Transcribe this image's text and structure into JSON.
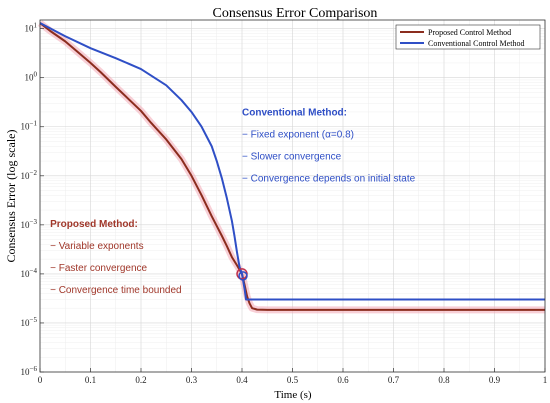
{
  "chart_data": {
    "type": "line",
    "title": "Consensus Error Comparison",
    "xlabel": "Time (s)",
    "ylabel": "Consensus Error (log scale)",
    "yscale": "log",
    "xlim": [
      0,
      1
    ],
    "ylim": [
      1e-06,
      15
    ],
    "grid": true,
    "legend_position": "top-right",
    "x_ticks": [
      {
        "value": 0,
        "label": "0"
      },
      {
        "value": 0.1,
        "label": "0.1"
      },
      {
        "value": 0.2,
        "label": "0.2"
      },
      {
        "value": 0.3,
        "label": "0.3"
      },
      {
        "value": 0.4,
        "label": "0.4"
      },
      {
        "value": 0.5,
        "label": "0.5"
      },
      {
        "value": 0.6,
        "label": "0.6"
      },
      {
        "value": 0.7,
        "label": "0.7"
      },
      {
        "value": 0.8,
        "label": "0.8"
      },
      {
        "value": 0.9,
        "label": "0.9"
      },
      {
        "value": 1,
        "label": "1"
      }
    ],
    "y_ticks": [
      {
        "value": 1e-06,
        "base": "10",
        "exp": "−6"
      },
      {
        "value": 1e-05,
        "base": "10",
        "exp": "−5"
      },
      {
        "value": 0.0001,
        "base": "10",
        "exp": "−4"
      },
      {
        "value": 0.001,
        "base": "10",
        "exp": "−3"
      },
      {
        "value": 0.01,
        "base": "10",
        "exp": "−2"
      },
      {
        "value": 0.1,
        "base": "10",
        "exp": "−1"
      },
      {
        "value": 1,
        "base": "10",
        "exp": "0"
      },
      {
        "value": 10,
        "base": "10",
        "exp": "1"
      }
    ],
    "series": [
      {
        "name": "Proposed Control Method",
        "color": "#8b2d1e",
        "x": [
          0,
          0.02,
          0.05,
          0.08,
          0.1,
          0.12,
          0.15,
          0.18,
          0.2,
          0.22,
          0.25,
          0.28,
          0.3,
          0.32,
          0.34,
          0.36,
          0.37,
          0.38,
          0.39,
          0.4,
          0.405,
          0.41,
          0.415,
          0.42,
          0.43,
          0.45,
          0.5,
          0.6,
          0.7,
          0.8,
          0.9,
          1.0
        ],
        "y": [
          13,
          9,
          5.5,
          3,
          2.0,
          1.3,
          0.65,
          0.33,
          0.21,
          0.12,
          0.055,
          0.022,
          0.01,
          0.004,
          0.0015,
          0.0006,
          0.00037,
          0.00022,
          0.00015,
          0.0001,
          6e-05,
          3.5e-05,
          2.5e-05,
          2e-05,
          1.87e-05,
          1.85e-05,
          1.85e-05,
          1.85e-05,
          1.85e-05,
          1.85e-05,
          1.85e-05,
          1.85e-05
        ]
      },
      {
        "name": "Conventional Control Method",
        "color": "#2f4fc6",
        "x": [
          0,
          0.05,
          0.1,
          0.15,
          0.2,
          0.25,
          0.28,
          0.3,
          0.32,
          0.34,
          0.35,
          0.36,
          0.37,
          0.38,
          0.385,
          0.39,
          0.395,
          0.4,
          0.405,
          0.408,
          0.41,
          0.42,
          0.5,
          0.6,
          0.7,
          0.8,
          0.9,
          1.0
        ],
        "y": [
          13,
          7,
          4,
          2.5,
          1.5,
          0.7,
          0.35,
          0.2,
          0.1,
          0.04,
          0.02,
          0.009,
          0.0035,
          0.0012,
          0.0006,
          0.00028,
          0.00014,
          0.0001,
          5e-05,
          3e-05,
          3e-05,
          3e-05,
          3e-05,
          3e-05,
          3e-05,
          3e-05,
          3e-05,
          3e-05
        ]
      }
    ],
    "highlight_point": {
      "x": 0.4,
      "y": 0.0001
    },
    "annotations": [
      {
        "group": "conventional",
        "color": "#2f4fc6",
        "title": "Conventional Method:",
        "x": 0.4,
        "y": 0.17,
        "items": [
          "− Fixed exponent (α=0.8)",
          "− Slower convergence",
          "− Convergence depends on initial state"
        ]
      },
      {
        "group": "proposed",
        "color": "#a0372a",
        "title": "Proposed Method:",
        "x": 0.02,
        "y": 0.0009,
        "items": [
          "− Variable exponents",
          "− Faster convergence",
          "− Convergence time bounded"
        ]
      }
    ]
  }
}
